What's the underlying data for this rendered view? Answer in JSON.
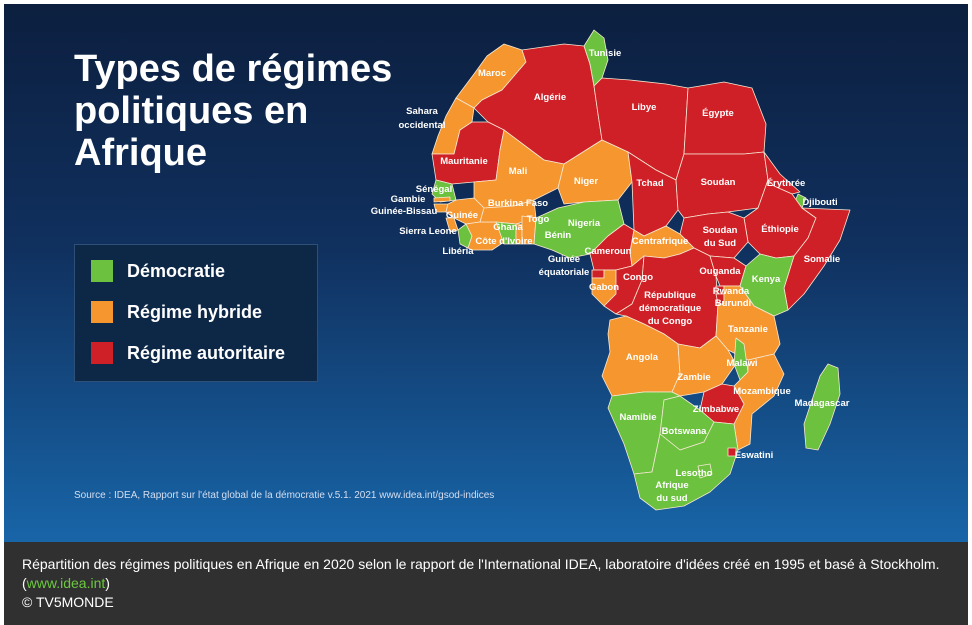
{
  "map": {
    "title_lines": [
      "Types de régimes",
      "politiques en",
      "Afrique"
    ],
    "legend": [
      {
        "label": "Démocratie",
        "color": "#6cc13f"
      },
      {
        "label": "Régime hybride",
        "color": "#f6962e"
      },
      {
        "label": "Régime autoritaire",
        "color": "#cf2027"
      }
    ],
    "source": "Source : IDEA, Rapport sur l'état global de la démocratie v.5.1. 2021 www.idea.int/gsod-indices",
    "countries": {
      "tunisie": {
        "label": "Tunisie",
        "regime": "Démocratie"
      },
      "maroc": {
        "label": "Maroc",
        "regime": "Régime hybride"
      },
      "algerie": {
        "label": "Algérie",
        "regime": "Régime autoritaire"
      },
      "libye": {
        "label": "Libye",
        "regime": "Régime autoritaire"
      },
      "egypte": {
        "label": "Égypte",
        "regime": "Régime autoritaire"
      },
      "sahara_occidental": {
        "label_lines": [
          "Sahara",
          "occidental"
        ],
        "regime": "Régime hybride"
      },
      "mauritanie": {
        "label": "Mauritanie",
        "regime": "Régime autoritaire"
      },
      "mali": {
        "label": "Mali",
        "regime": "Régime hybride"
      },
      "niger": {
        "label": "Niger",
        "regime": "Régime hybride"
      },
      "tchad": {
        "label": "Tchad",
        "regime": "Régime autoritaire"
      },
      "soudan": {
        "label": "Soudan",
        "regime": "Régime autoritaire"
      },
      "erythree": {
        "label": "Érythrée",
        "regime": "Régime autoritaire"
      },
      "djibouti": {
        "label": "Djibouti",
        "regime": "Régime autoritaire"
      },
      "senegal": {
        "label": "Sénégal",
        "regime": "Démocratie"
      },
      "gambie": {
        "label": "Gambie",
        "regime": "Régime hybride"
      },
      "guinee_bissau": {
        "label": "Guinée-Bissau",
        "regime": "Régime hybride"
      },
      "guinee": {
        "label": "Guinée",
        "regime": "Régime hybride"
      },
      "sierra_leone": {
        "label": "Sierra Leone",
        "regime": "Régime hybride"
      },
      "liberia": {
        "label": "Libéria",
        "regime": "Démocratie"
      },
      "burkina_faso": {
        "label": "Burkina Faso",
        "regime": "Régime hybride"
      },
      "ghana": {
        "label": "Ghana",
        "regime": "Démocratie"
      },
      "togo": {
        "label": "Togo",
        "regime": "Régime hybride"
      },
      "benin": {
        "label": "Bénin",
        "regime": "Régime hybride"
      },
      "cote_divoire": {
        "label": "Côte d'Ivoire",
        "regime": "Régime hybride"
      },
      "nigeria": {
        "label": "Nigeria",
        "regime": "Démocratie"
      },
      "soudan_du_sud": {
        "label_lines": [
          "Soudan",
          "du Sud"
        ],
        "regime": "Régime autoritaire"
      },
      "ethiopie": {
        "label": "Éthiopie",
        "regime": "Régime autoritaire"
      },
      "somalie": {
        "label": "Somalie",
        "regime": "Régime autoritaire"
      },
      "centrafrique": {
        "label": "Centrafrique",
        "regime": "Régime hybride"
      },
      "cameroun": {
        "label": "Cameroun",
        "regime": "Régime autoritaire"
      },
      "guinee_equatoriale": {
        "label_lines": [
          "Guinée",
          "équatoriale"
        ],
        "regime": "Régime autoritaire"
      },
      "gabon": {
        "label": "Gabon",
        "regime": "Régime hybride"
      },
      "congo": {
        "label": "Congo",
        "regime": "Régime autoritaire"
      },
      "rdc": {
        "label_lines": [
          "République",
          "démocratique",
          "du Congo"
        ],
        "regime": "Régime autoritaire"
      },
      "ouganda": {
        "label": "Ouganda",
        "regime": "Régime autoritaire"
      },
      "kenya": {
        "label": "Kenya",
        "regime": "Démocratie"
      },
      "rwanda": {
        "label": "Rwanda",
        "regime": "Régime autoritaire"
      },
      "burundi": {
        "label": "Burundi",
        "regime": "Régime autoritaire"
      },
      "tanzanie": {
        "label": "Tanzanie",
        "regime": "Régime hybride"
      },
      "angola": {
        "label": "Angola",
        "regime": "Régime hybride"
      },
      "zambie": {
        "label": "Zambie",
        "regime": "Régime hybride"
      },
      "malawi": {
        "label": "Malawi",
        "regime": "Démocratie"
      },
      "mozambique": {
        "label": "Mozambique",
        "regime": "Régime hybride"
      },
      "madagascar": {
        "label": "Madagascar",
        "regime": "Démocratie"
      },
      "zimbabwe": {
        "label": "Zimbabwe",
        "regime": "Régime autoritaire"
      },
      "namibie": {
        "label": "Namibie",
        "regime": "Démocratie"
      },
      "botswana": {
        "label": "Botswana",
        "regime": "Démocratie"
      },
      "eswatini": {
        "label": "Eswatini",
        "regime": "Régime autoritaire"
      },
      "lesotho": {
        "label": "Lesotho",
        "regime": "Démocratie"
      },
      "afrique_du_sud": {
        "label_lines": [
          "Afrique",
          "du sud"
        ],
        "regime": "Démocratie"
      }
    }
  },
  "caption": {
    "text_before_link": "Répartition des régimes politiques en Afrique en 2020 selon le rapport de l'International IDEA, laboratoire d'idées créé en 1995 et basé à Stockholm. (",
    "link_text": "www.idea.int",
    "text_after_link": ")",
    "credit": "© TV5MONDE"
  }
}
